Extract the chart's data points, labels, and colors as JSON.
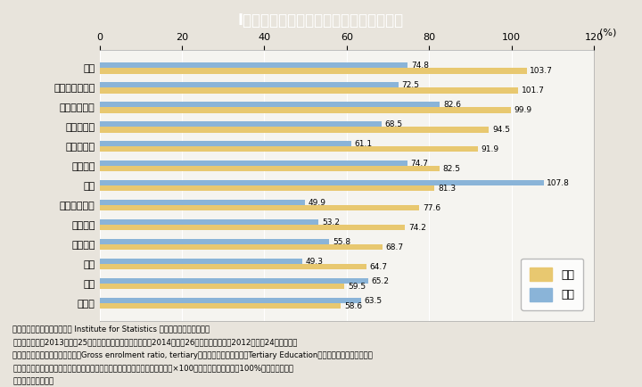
{
  "title": "I－６－３図　高等教育在学率の国際比較",
  "countries": [
    "米国",
    "オーストラリア",
    "フィンランド",
    "デンマーク",
    "ノルウェー",
    "オランダ",
    "韓国",
    "スウェーデン",
    "イタリア",
    "フランス",
    "英国",
    "日本",
    "ドイツ"
  ],
  "female": [
    103.7,
    101.7,
    99.9,
    94.5,
    91.9,
    82.5,
    81.3,
    77.6,
    74.2,
    68.7,
    64.7,
    59.5,
    58.6
  ],
  "male": [
    74.8,
    72.5,
    82.6,
    68.5,
    61.1,
    74.7,
    107.8,
    49.9,
    53.2,
    55.8,
    49.3,
    65.2,
    63.5
  ],
  "female_color": "#E8C870",
  "male_color": "#8AB4D8",
  "bg_color": "#E8E4DC",
  "plot_bg": "#F5F4F0",
  "title_bg": "#28B4C8",
  "title_text_color": "#FFFFFF",
  "xlabel": "(%)",
  "xlim": [
    0,
    120
  ],
  "xticks": [
    0,
    20,
    40,
    60,
    80,
    100,
    120
  ],
  "bar_height": 0.28,
  "legend_female": "女性",
  "legend_male": "男性",
  "note_lines": [
    "（備考）１．　ＵＮＥＳＣＯ Institute for Statistics ウェブサイトより作成。",
    "　　　　２．　2013（平成25）年時点の値。ただし，韓国は2014（平成26）年，オランダは2012（平成24）年の値。",
    "　　　　３．　高等教育在学率（Gross enrolment ratio, tertiary）は，「高等教育機関（Tertiary Education，　ＩＳＣＥＤ５及び６）",
    "　　　　　　の在学者数（全年齢）」／「中等教育に続く５歳上までの人口」×100で算出しているため，100%を超える場合が",
    "　　　　　　ある。"
  ]
}
